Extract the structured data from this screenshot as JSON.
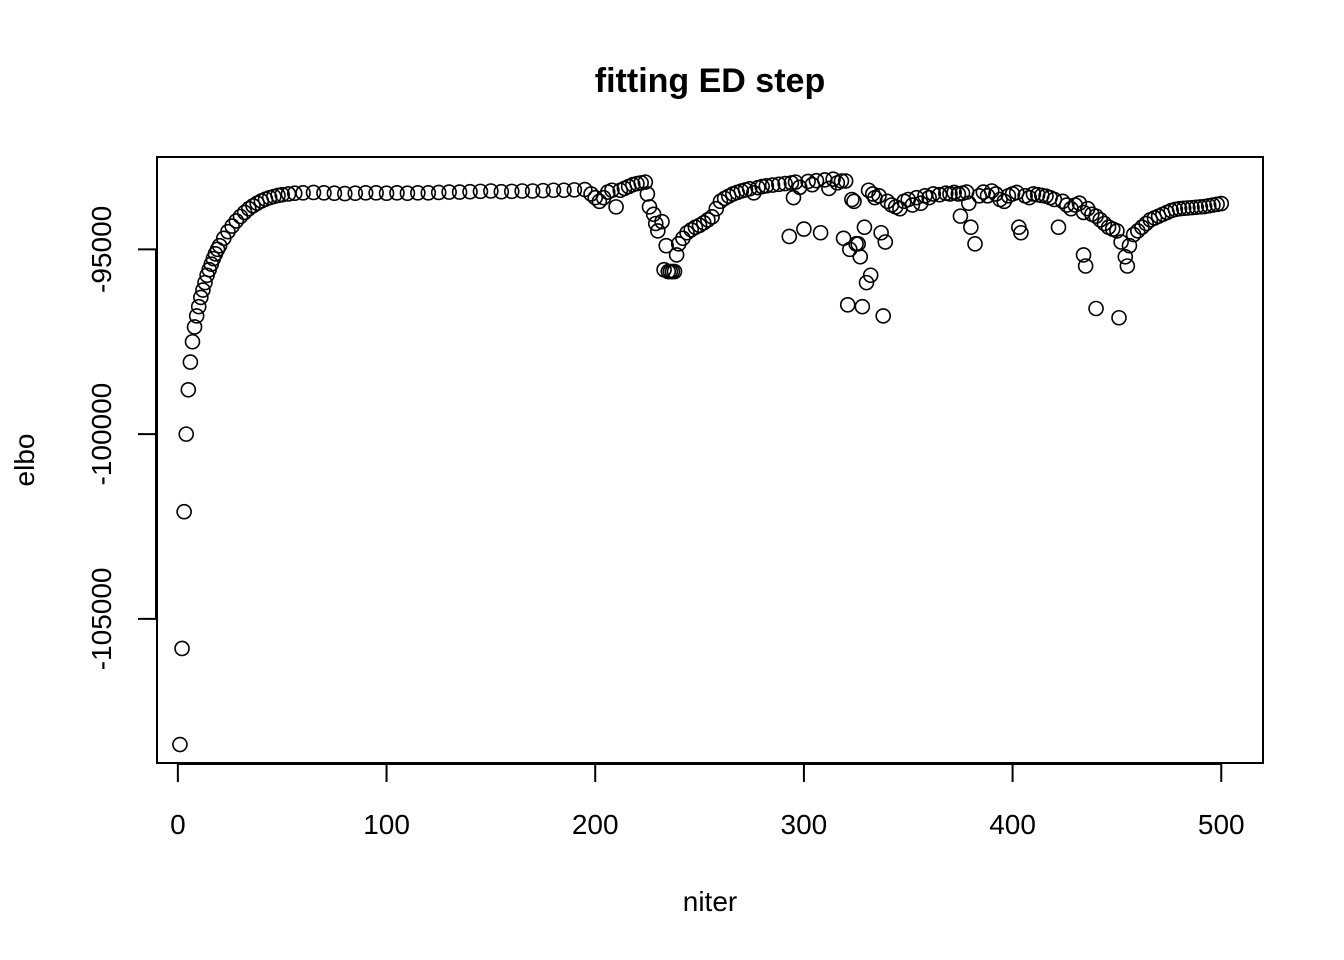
{
  "chart_data": {
    "type": "scatter",
    "title": "fitting ED step",
    "xlabel": "niter",
    "ylabel": "elbo",
    "xlim": [
      -10,
      520
    ],
    "ylim": [
      -108900,
      -92500
    ],
    "xticks": [
      0,
      100,
      200,
      300,
      400,
      500
    ],
    "xtick_labels": [
      "0",
      "100",
      "200",
      "300",
      "400",
      "500"
    ],
    "yticks": [
      -105000,
      -100000,
      -95000
    ],
    "ytick_labels": [
      "-105000",
      "-100000",
      "-95000"
    ],
    "grid": false,
    "legend": "none",
    "marker": "open-circle",
    "marker_color": "#000000",
    "points": [
      [
        1,
        -108400
      ],
      [
        2,
        -105800
      ],
      [
        3,
        -102100
      ],
      [
        4,
        -100000
      ],
      [
        5,
        -98800
      ],
      [
        6,
        -98050
      ],
      [
        7,
        -97500
      ],
      [
        8,
        -97100
      ],
      [
        9,
        -96800
      ],
      [
        10,
        -96550
      ],
      [
        11,
        -96300
      ],
      [
        12,
        -96100
      ],
      [
        13,
        -95900
      ],
      [
        14,
        -95700
      ],
      [
        15,
        -95550
      ],
      [
        16,
        -95400
      ],
      [
        17,
        -95250
      ],
      [
        18,
        -95120
      ],
      [
        19,
        -95000
      ],
      [
        20,
        -94900
      ],
      [
        22,
        -94700
      ],
      [
        24,
        -94520
      ],
      [
        26,
        -94370
      ],
      [
        28,
        -94230
      ],
      [
        30,
        -94110
      ],
      [
        32,
        -94000
      ],
      [
        34,
        -93900
      ],
      [
        36,
        -93820
      ],
      [
        38,
        -93750
      ],
      [
        40,
        -93690
      ],
      [
        42,
        -93640
      ],
      [
        44,
        -93600
      ],
      [
        46,
        -93570
      ],
      [
        48,
        -93540
      ],
      [
        50,
        -93520
      ],
      [
        53,
        -93500
      ],
      [
        56,
        -93480
      ],
      [
        60,
        -93470
      ],
      [
        65,
        -93460
      ],
      [
        70,
        -93470
      ],
      [
        75,
        -93480
      ],
      [
        80,
        -93490
      ],
      [
        85,
        -93480
      ],
      [
        90,
        -93470
      ],
      [
        95,
        -93470
      ],
      [
        100,
        -93480
      ],
      [
        105,
        -93470
      ],
      [
        110,
        -93480
      ],
      [
        115,
        -93470
      ],
      [
        120,
        -93470
      ],
      [
        125,
        -93460
      ],
      [
        130,
        -93450
      ],
      [
        135,
        -93450
      ],
      [
        140,
        -93440
      ],
      [
        145,
        -93430
      ],
      [
        150,
        -93420
      ],
      [
        155,
        -93440
      ],
      [
        160,
        -93430
      ],
      [
        165,
        -93420
      ],
      [
        170,
        -93420
      ],
      [
        175,
        -93410
      ],
      [
        180,
        -93400
      ],
      [
        185,
        -93400
      ],
      [
        190,
        -93390
      ],
      [
        195,
        -93380
      ],
      [
        198,
        -93500
      ],
      [
        200,
        -93600
      ],
      [
        202,
        -93700
      ],
      [
        204,
        -93600
      ],
      [
        206,
        -93450
      ],
      [
        208,
        -93400
      ],
      [
        210,
        -93850
      ],
      [
        212,
        -93400
      ],
      [
        214,
        -93350
      ],
      [
        216,
        -93300
      ],
      [
        218,
        -93250
      ],
      [
        220,
        -93220
      ],
      [
        222,
        -93200
      ],
      [
        224,
        -93180
      ],
      [
        225,
        -93500
      ],
      [
        226,
        -93850
      ],
      [
        228,
        -94050
      ],
      [
        229,
        -94300
      ],
      [
        230,
        -94500
      ],
      [
        232,
        -94250
      ],
      [
        233,
        -95550
      ],
      [
        234,
        -94900
      ],
      [
        235,
        -95600
      ],
      [
        236,
        -95600
      ],
      [
        237,
        -95600
      ],
      [
        238,
        -95600
      ],
      [
        239,
        -95150
      ],
      [
        240,
        -94850
      ],
      [
        242,
        -94700
      ],
      [
        244,
        -94550
      ],
      [
        246,
        -94470
      ],
      [
        248,
        -94400
      ],
      [
        250,
        -94350
      ],
      [
        252,
        -94280
      ],
      [
        254,
        -94200
      ],
      [
        256,
        -94120
      ],
      [
        258,
        -93900
      ],
      [
        260,
        -93700
      ],
      [
        262,
        -93620
      ],
      [
        264,
        -93560
      ],
      [
        266,
        -93500
      ],
      [
        268,
        -93460
      ],
      [
        270,
        -93420
      ],
      [
        272,
        -93390
      ],
      [
        274,
        -93360
      ],
      [
        276,
        -93470
      ],
      [
        278,
        -93330
      ],
      [
        280,
        -93300
      ],
      [
        282,
        -93280
      ],
      [
        285,
        -93260
      ],
      [
        288,
        -93240
      ],
      [
        291,
        -93220
      ],
      [
        293,
        -94650
      ],
      [
        294,
        -93200
      ],
      [
        295,
        -93600
      ],
      [
        296,
        -93180
      ],
      [
        298,
        -93320
      ],
      [
        300,
        -94450
      ],
      [
        302,
        -93160
      ],
      [
        304,
        -93250
      ],
      [
        306,
        -93140
      ],
      [
        308,
        -94550
      ],
      [
        310,
        -93120
      ],
      [
        312,
        -93350
      ],
      [
        314,
        -93100
      ],
      [
        316,
        -93200
      ],
      [
        318,
        -93150
      ],
      [
        319,
        -94700
      ],
      [
        320,
        -93150
      ],
      [
        321,
        -96500
      ],
      [
        322,
        -95000
      ],
      [
        323,
        -93650
      ],
      [
        324,
        -93700
      ],
      [
        325,
        -94850
      ],
      [
        326,
        -94850
      ],
      [
        327,
        -95200
      ],
      [
        328,
        -96550
      ],
      [
        329,
        -94400
      ],
      [
        330,
        -95900
      ],
      [
        331,
        -93400
      ],
      [
        332,
        -95700
      ],
      [
        333,
        -93500
      ],
      [
        334,
        -93600
      ],
      [
        336,
        -93550
      ],
      [
        337,
        -94550
      ],
      [
        338,
        -96800
      ],
      [
        339,
        -94800
      ],
      [
        340,
        -93700
      ],
      [
        342,
        -93800
      ],
      [
        344,
        -93850
      ],
      [
        346,
        -93900
      ],
      [
        348,
        -93700
      ],
      [
        350,
        -93650
      ],
      [
        352,
        -93800
      ],
      [
        354,
        -93600
      ],
      [
        356,
        -93750
      ],
      [
        358,
        -93550
      ],
      [
        360,
        -93600
      ],
      [
        362,
        -93500
      ],
      [
        365,
        -93520
      ],
      [
        368,
        -93480
      ],
      [
        370,
        -93500
      ],
      [
        372,
        -93460
      ],
      [
        374,
        -93500
      ],
      [
        375,
        -94100
      ],
      [
        376,
        -93480
      ],
      [
        378,
        -93450
      ],
      [
        379,
        -93750
      ],
      [
        380,
        -94400
      ],
      [
        382,
        -94850
      ],
      [
        384,
        -93550
      ],
      [
        386,
        -93450
      ],
      [
        388,
        -93550
      ],
      [
        390,
        -93420
      ],
      [
        392,
        -93500
      ],
      [
        394,
        -93650
      ],
      [
        396,
        -93700
      ],
      [
        398,
        -93550
      ],
      [
        400,
        -93500
      ],
      [
        402,
        -93460
      ],
      [
        403,
        -94400
      ],
      [
        404,
        -94550
      ],
      [
        406,
        -93550
      ],
      [
        408,
        -93600
      ],
      [
        410,
        -93500
      ],
      [
        412,
        -93520
      ],
      [
        414,
        -93540
      ],
      [
        416,
        -93560
      ],
      [
        418,
        -93600
      ],
      [
        420,
        -93650
      ],
      [
        422,
        -94400
      ],
      [
        424,
        -93700
      ],
      [
        426,
        -93800
      ],
      [
        428,
        -93900
      ],
      [
        430,
        -93800
      ],
      [
        432,
        -93750
      ],
      [
        434,
        -94000
      ],
      [
        434,
        -95150
      ],
      [
        435,
        -95450
      ],
      [
        436,
        -93900
      ],
      [
        438,
        -94050
      ],
      [
        440,
        -96600
      ],
      [
        440,
        -94100
      ],
      [
        442,
        -94200
      ],
      [
        444,
        -94300
      ],
      [
        446,
        -94400
      ],
      [
        448,
        -94450
      ],
      [
        450,
        -94500
      ],
      [
        451,
        -96850
      ],
      [
        452,
        -94800
      ],
      [
        454,
        -95200
      ],
      [
        455,
        -95450
      ],
      [
        456,
        -94900
      ],
      [
        458,
        -94600
      ],
      [
        460,
        -94500
      ],
      [
        462,
        -94400
      ],
      [
        464,
        -94300
      ],
      [
        466,
        -94200
      ],
      [
        468,
        -94150
      ],
      [
        470,
        -94100
      ],
      [
        472,
        -94050
      ],
      [
        474,
        -94000
      ],
      [
        476,
        -93950
      ],
      [
        478,
        -93920
      ],
      [
        480,
        -93900
      ],
      [
        482,
        -93890
      ],
      [
        484,
        -93880
      ],
      [
        486,
        -93870
      ],
      [
        488,
        -93860
      ],
      [
        490,
        -93850
      ],
      [
        492,
        -93840
      ],
      [
        494,
        -93820
      ],
      [
        496,
        -93800
      ],
      [
        498,
        -93780
      ],
      [
        500,
        -93760
      ]
    ]
  }
}
